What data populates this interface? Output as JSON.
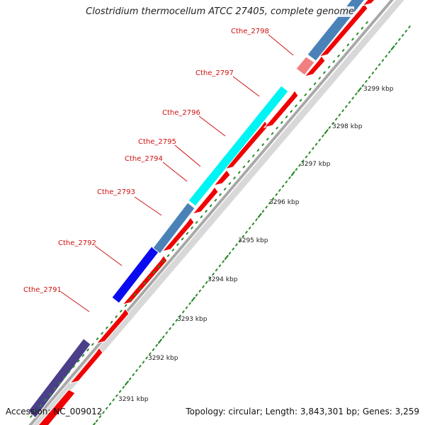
{
  "title": "Clostridium thermocellum ATCC 27405, complete genome",
  "footer": {
    "accession": "Accession: NC_009012",
    "summary": "Topology: circular; Length: 3,843,301 bp; Genes: 3,259"
  },
  "colors": {
    "backbone": "#a8a8a8",
    "backbone_shadow": "#d8d8d8",
    "forward_strand_gene": "#f00000",
    "dot_track": "#2a8a2a",
    "gene_label": "#d01010"
  },
  "diagram": {
    "type": "circular-genome-map-zoomed",
    "gene_labels": [
      {
        "id": "Cthe_2791",
        "label": "Cthe_2791"
      },
      {
        "id": "Cthe_2792",
        "label": "Cthe_2792"
      },
      {
        "id": "Cthe_2793",
        "label": "Cthe_2793"
      },
      {
        "id": "Cthe_2794",
        "label": "Cthe_2794"
      },
      {
        "id": "Cthe_2795",
        "label": "Cthe_2795"
      },
      {
        "id": "Cthe_2796",
        "label": "Cthe_2796"
      },
      {
        "id": "Cthe_2797",
        "label": "Cthe_2797"
      },
      {
        "id": "Cthe_2798",
        "label": "Cthe_2798"
      }
    ],
    "cog_blocks": [
      {
        "name": "cog-block-darkpurple",
        "color": "#4b3f8a"
      },
      {
        "name": "cog-block-blue",
        "color": "#0a0af0"
      },
      {
        "name": "cog-block-steelblue",
        "color": "#4a82b8"
      },
      {
        "name": "cog-block-cyan",
        "color": "#00f4f4"
      },
      {
        "name": "cog-block-salmon",
        "color": "#f08080"
      },
      {
        "name": "cog-block-steelblue-top",
        "color": "#4a82b8"
      }
    ],
    "scale_ticks": [
      {
        "label": "3291 kbp"
      },
      {
        "label": "3292 kbp"
      },
      {
        "label": "3293 kbp"
      },
      {
        "label": "3294 kbp"
      },
      {
        "label": "3295 kbp"
      },
      {
        "label": "3296 kbp"
      },
      {
        "label": "3297 kbp"
      },
      {
        "label": "3298 kbp"
      },
      {
        "label": "3299 kbp"
      }
    ]
  }
}
